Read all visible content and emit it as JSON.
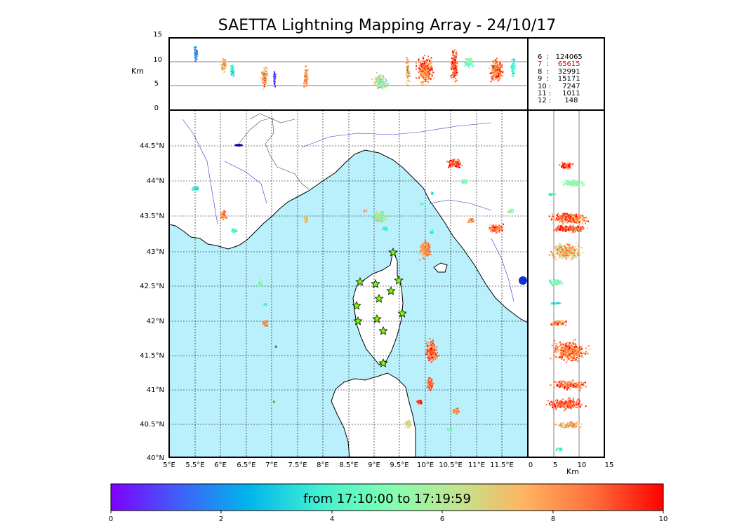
{
  "title": "SAETTA Lightning Mapping Array - 24/10/17",
  "colors": {
    "sea": "#b9f0fb",
    "land": "#ffffff",
    "coast": "#000000",
    "rivers": "#3030cc",
    "stations": "#7cfc00"
  },
  "top_panel": {
    "ylabel": "Km",
    "y_ticks": [
      "15",
      "10",
      "5",
      "0"
    ]
  },
  "counts": [
    {
      "label": "6  :   124065",
      "color": "#000000"
    },
    {
      "label": "7  :    65615",
      "color": "#e00000"
    },
    {
      "label": "8  :    32991",
      "color": "#000000"
    },
    {
      "label": "9  :    15171",
      "color": "#000000"
    },
    {
      "label": "10 :     7247",
      "color": "#000000"
    },
    {
      "label": "11 :     1011",
      "color": "#000000"
    },
    {
      "label": "12 :      148",
      "color": "#000000"
    }
  ],
  "map": {
    "lon_ticks": [
      "5°E",
      "5.5°E",
      "6°E",
      "6.5°E",
      "7°E",
      "7.5°E",
      "8°E",
      "8.5°E",
      "9°E",
      "9.5°E",
      "10°E",
      "10.5°E",
      "11°E",
      "11.5°E"
    ],
    "lat_ticks": [
      "44.5°N",
      "44°N",
      "43.5°N",
      "43°N",
      "42.5°N",
      "42°N",
      "41.5°N",
      "41°N",
      "40.5°N",
      "40°N"
    ]
  },
  "right_panel": {
    "xlabel": "Km",
    "x_ticks": [
      "0",
      "5",
      "10",
      "15"
    ]
  },
  "colorbar": {
    "label": "from 17:10:00 to 17:19:59",
    "ticks": [
      "0",
      "2",
      "4",
      "6",
      "8",
      "10"
    ],
    "colors": [
      "#7f00ff",
      "#3f61fa",
      "#00b5eb",
      "#3ff0d1",
      "#7ffeb3",
      "#c0e68f",
      "#ffb360",
      "#ff6d3a",
      "#ff0000"
    ]
  }
}
